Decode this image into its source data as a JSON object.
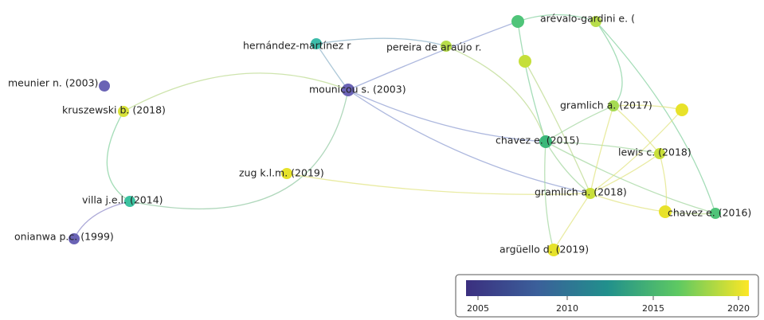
{
  "nodes": [
    {
      "label": "meunier n. (2003)"
    },
    {
      "label": "kruszewski b. (2018)"
    },
    {
      "label": "villa j.e.l. (2014)"
    },
    {
      "label": "onianwa p.c. (1999)"
    },
    {
      "label": "hernández-martínez r"
    },
    {
      "label": "pereira de araújo r."
    },
    {
      "label": "mounicou s. (2003)"
    },
    {
      "label": "zug k.l.m. (2019)"
    },
    {
      "label": "arévalo-gardini e. ("
    },
    {
      "label": "gramlich a. (2017)"
    },
    {
      "label": "chavez e. (2015)"
    },
    {
      "label": "lewis c. (2018)"
    },
    {
      "label": "gramlich a. (2018)"
    },
    {
      "label": "chavez e. (2016)"
    },
    {
      "label": "argüello d. (2019)"
    }
  ],
  "legend": {
    "ticks": [
      "2005",
      "2010",
      "2015",
      "2020"
    ]
  }
}
